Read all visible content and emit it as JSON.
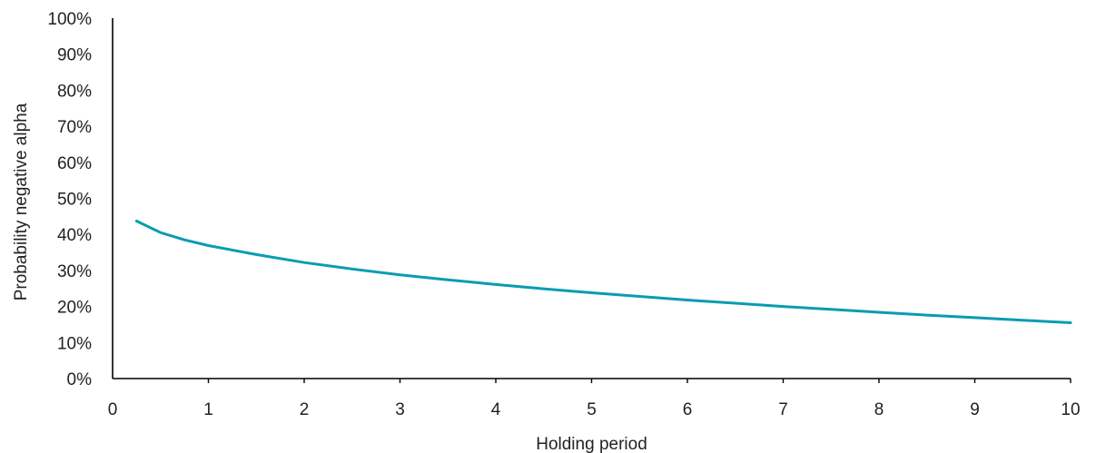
{
  "chart_data": {
    "type": "line",
    "title": "",
    "xlabel": "Holding period",
    "ylabel": "Probability negative alpha",
    "xlim": [
      0,
      10
    ],
    "ylim": [
      0,
      100
    ],
    "x_ticks": [
      0,
      1,
      2,
      3,
      4,
      5,
      6,
      7,
      8,
      9,
      10
    ],
    "x_tick_labels": [
      "0",
      "1",
      "2",
      "3",
      "4",
      "5",
      "6",
      "7",
      "8",
      "9",
      "10"
    ],
    "y_ticks": [
      0,
      10,
      20,
      30,
      40,
      50,
      60,
      70,
      80,
      90,
      100
    ],
    "y_tick_labels": [
      "0%",
      "10%",
      "20%",
      "30%",
      "40%",
      "50%",
      "60%",
      "70%",
      "80%",
      "90%",
      "100%"
    ],
    "grid": false,
    "legend": "none",
    "line_color": "#0a9cb0",
    "series": [
      {
        "x": [
          0.25,
          0.5,
          0.75,
          1,
          1.5,
          2,
          2.5,
          3,
          3.5,
          4,
          4.5,
          5,
          5.5,
          6,
          6.5,
          7,
          7.5,
          8,
          8.5,
          9,
          9.5,
          10
        ],
        "values": [
          43.7,
          40.5,
          38.5,
          36.9,
          34.4,
          32.2,
          30.4,
          28.8,
          27.4,
          26.1,
          24.9,
          23.8,
          22.8,
          21.8,
          20.9,
          20.0,
          19.2,
          18.4,
          17.6,
          16.9,
          16.2,
          15.5
        ]
      }
    ]
  }
}
